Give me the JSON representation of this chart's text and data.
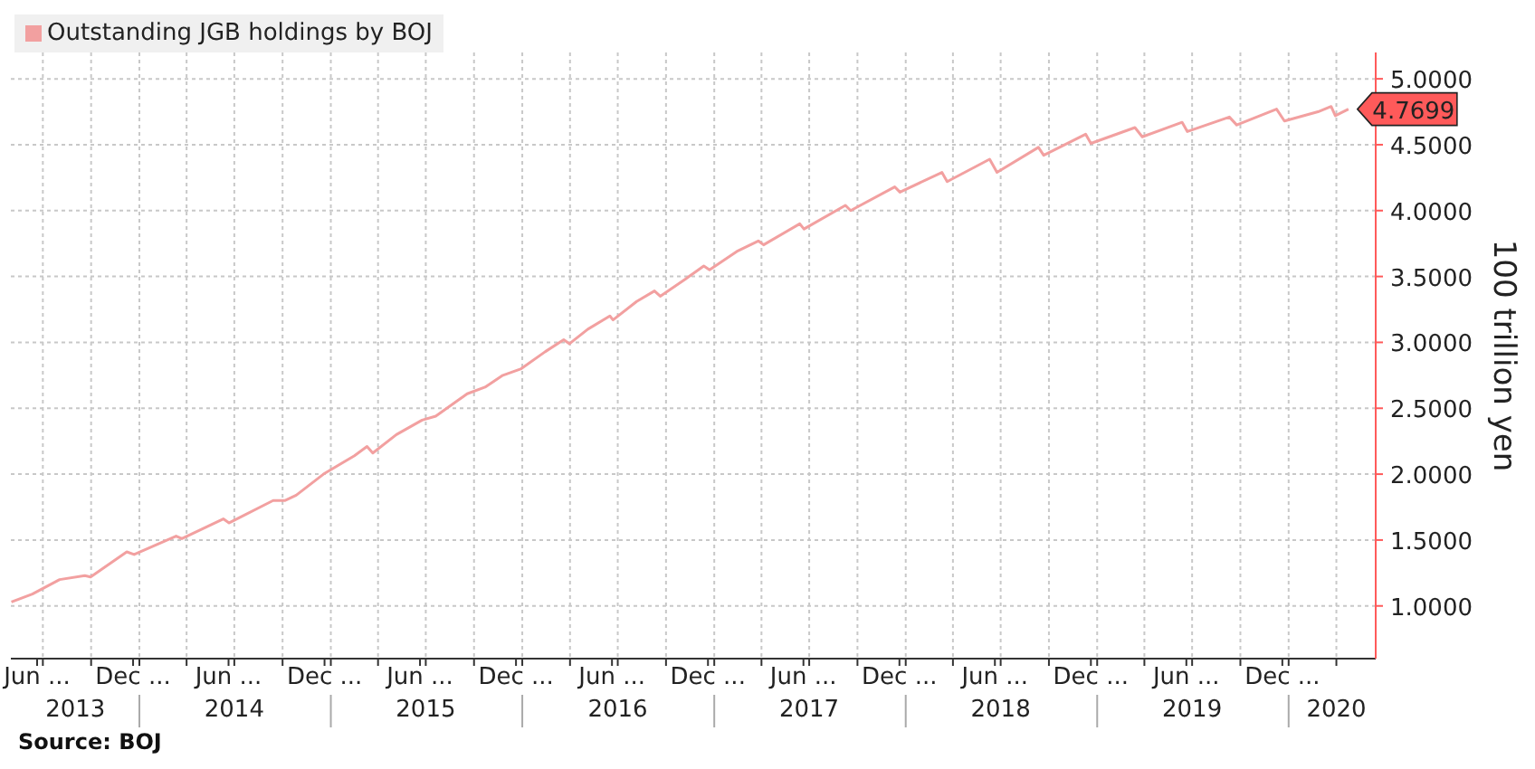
{
  "chart_data": {
    "type": "line",
    "ylabel": "100 trillion yen",
    "annotations": [
      "Source: BOJ"
    ],
    "legend": "top left",
    "grid": true,
    "marker": "none",
    "line_style": "solid",
    "tick_labels": "xy",
    "xlim": [
      "2013-05-01",
      "2020-06-15"
    ],
    "xticks": [
      {
        "value": "2013-06-20",
        "label": "Jun ..."
      },
      {
        "value": "2013-12-20",
        "label": "Dec ..."
      },
      {
        "value": "2014-06-20",
        "label": "Jun ..."
      },
      {
        "value": "2014-12-20",
        "label": "Dec ..."
      },
      {
        "value": "2015-06-20",
        "label": "Jun ..."
      },
      {
        "value": "2015-12-20",
        "label": "Dec ..."
      },
      {
        "value": "2016-06-20",
        "label": "Jun ..."
      },
      {
        "value": "2016-12-20",
        "label": "Dec ..."
      },
      {
        "value": "2017-06-20",
        "label": "Jun ..."
      },
      {
        "value": "2017-12-20",
        "label": "Dec ..."
      },
      {
        "value": "2018-06-20",
        "label": "Jun ..."
      },
      {
        "value": "2018-12-20",
        "label": "Dec ..."
      },
      {
        "value": "2019-06-20",
        "label": "Jun ..."
      },
      {
        "value": "2019-12-20",
        "label": "Dec ..."
      },
      {
        "value": "2013-07-01",
        "label": null
      },
      {
        "value": "2013-10-01",
        "label": null
      },
      {
        "value": "2014-01-01",
        "label": null
      },
      {
        "value": "2014-04-01",
        "label": null
      },
      {
        "value": "2014-07-01",
        "label": null
      },
      {
        "value": "2014-10-01",
        "label": null
      },
      {
        "value": "2015-01-01",
        "label": null
      },
      {
        "value": "2015-04-01",
        "label": null
      },
      {
        "value": "2015-07-01",
        "label": null
      },
      {
        "value": "2015-10-01",
        "label": null
      },
      {
        "value": "2016-01-01",
        "label": null
      },
      {
        "value": "2016-04-01",
        "label": null
      },
      {
        "value": "2016-07-01",
        "label": null
      },
      {
        "value": "2016-10-01",
        "label": null
      },
      {
        "value": "2017-01-01",
        "label": null
      },
      {
        "value": "2017-04-01",
        "label": null
      },
      {
        "value": "2017-07-01",
        "label": null
      },
      {
        "value": "2017-10-01",
        "label": null
      },
      {
        "value": "2018-01-01",
        "label": null
      },
      {
        "value": "2018-04-01",
        "label": null
      },
      {
        "value": "2018-07-01",
        "label": null
      },
      {
        "value": "2018-10-01",
        "label": null
      },
      {
        "value": "2019-01-01",
        "label": null
      },
      {
        "value": "2019-04-01",
        "label": null
      },
      {
        "value": "2019-07-01",
        "label": null
      },
      {
        "value": "2019-10-01",
        "label": null
      },
      {
        "value": "2020-01-01",
        "label": null
      },
      {
        "value": "2020-04-01",
        "label": null
      }
    ],
    "x2ticks": [
      {
        "value": "2013-09-01",
        "label": "2013"
      },
      {
        "value": "2014-07-01",
        "label": "2014"
      },
      {
        "value": "2015-07-01",
        "label": "2015"
      },
      {
        "value": "2016-07-01",
        "label": "2016"
      },
      {
        "value": "2017-07-01",
        "label": "2017"
      },
      {
        "value": "2018-07-01",
        "label": "2018"
      },
      {
        "value": "2019-07-01",
        "label": "2019"
      },
      {
        "value": "2020-04-01",
        "label": "2020"
      },
      {
        "value": "2014-01-01",
        "label": null
      },
      {
        "value": "2015-01-01",
        "label": null
      },
      {
        "value": "2016-01-01",
        "label": null
      },
      {
        "value": "2017-01-01",
        "label": null
      },
      {
        "value": "2018-01-01",
        "label": null
      },
      {
        "value": "2019-01-01",
        "label": null
      },
      {
        "value": "2020-01-01",
        "label": null
      }
    ],
    "x2lim": [
      "2013-05-01",
      "2020-06-15"
    ],
    "ylim": [
      0.6,
      5.2
    ],
    "yticks": [
      {
        "value": 1,
        "label": "1.0000"
      },
      {
        "value": 1.5,
        "label": "1.5000"
      },
      {
        "value": 2,
        "label": "2.0000"
      },
      {
        "value": 2.5,
        "label": "2.5000"
      },
      {
        "value": 3,
        "label": "3.0000"
      },
      {
        "value": 3.5,
        "label": "3.5000"
      },
      {
        "value": 4,
        "label": "4.0000"
      },
      {
        "value": 4.5,
        "label": "4.5000"
      },
      {
        "value": 5,
        "label": "5.0000"
      }
    ],
    "series": [
      {
        "name": "Outstanding JGB holdings by BOJ",
        "color": "#f2a0a0",
        "x": [
          "2013-05-02",
          "2013-06-11",
          "2013-08-02",
          "2013-09-19",
          "2013-09-30",
          "2013-12-08",
          "2013-12-22",
          "2014-03-12",
          "2014-03-23",
          "2014-06-10",
          "2014-06-21",
          "2014-09-13",
          "2014-10-06",
          "2014-10-27",
          "2014-12-18",
          "2015-02-15",
          "2015-03-11",
          "2015-03-22",
          "2015-05-06",
          "2015-06-24",
          "2015-07-20",
          "2015-09-18",
          "2015-10-22",
          "2015-11-25",
          "2015-12-30",
          "2016-02-14",
          "2016-03-20",
          "2016-03-31",
          "2016-05-05",
          "2016-06-16",
          "2016-06-22",
          "2016-08-06",
          "2016-09-09",
          "2016-09-20",
          "2016-11-07",
          "2016-12-12",
          "2016-12-23",
          "2017-02-13",
          "2017-03-26",
          "2017-04-05",
          "2017-06-13",
          "2017-06-21",
          "2017-09-08",
          "2017-09-18",
          "2017-12-11",
          "2017-12-21",
          "2018-03-11",
          "2018-03-21",
          "2018-06-10",
          "2018-06-24",
          "2018-09-11",
          "2018-09-21",
          "2018-12-10",
          "2018-12-20",
          "2019-03-14",
          "2019-03-28",
          "2019-06-12",
          "2019-06-22",
          "2019-09-10",
          "2019-09-24",
          "2019-12-09",
          "2019-12-24",
          "2020-02-26",
          "2020-03-22",
          "2020-03-30",
          "2020-04-24"
        ],
        "values": [
          1.03,
          1.09,
          1.2,
          1.23,
          1.22,
          1.41,
          1.39,
          1.53,
          1.51,
          1.66,
          1.63,
          1.8,
          1.8,
          1.84,
          2.0,
          2.14,
          2.21,
          2.16,
          2.3,
          2.41,
          2.44,
          2.61,
          2.66,
          2.75,
          2.8,
          2.93,
          3.02,
          2.99,
          3.1,
          3.2,
          3.17,
          3.31,
          3.39,
          3.35,
          3.48,
          3.58,
          3.55,
          3.69,
          3.77,
          3.74,
          3.9,
          3.86,
          4.04,
          4.0,
          4.18,
          4.14,
          4.29,
          4.22,
          4.39,
          4.29,
          4.48,
          4.42,
          4.58,
          4.51,
          4.63,
          4.56,
          4.67,
          4.6,
          4.71,
          4.65,
          4.77,
          4.68,
          4.75,
          4.79,
          4.72,
          4.7699
        ],
        "value_labels": [
          null,
          null,
          null,
          null,
          null,
          null,
          null,
          null,
          null,
          null,
          null,
          null,
          null,
          null,
          null,
          null,
          null,
          null,
          null,
          null,
          null,
          null,
          null,
          null,
          null,
          null,
          null,
          null,
          null,
          null,
          null,
          null,
          null,
          null,
          null,
          null,
          null,
          null,
          null,
          null,
          null,
          null,
          null,
          null,
          null,
          null,
          null,
          null,
          null,
          null,
          null,
          null,
          null,
          null,
          null,
          null,
          null,
          null,
          null,
          null,
          null,
          null,
          null,
          null,
          null,
          "4.7699"
        ]
      }
    ]
  }
}
